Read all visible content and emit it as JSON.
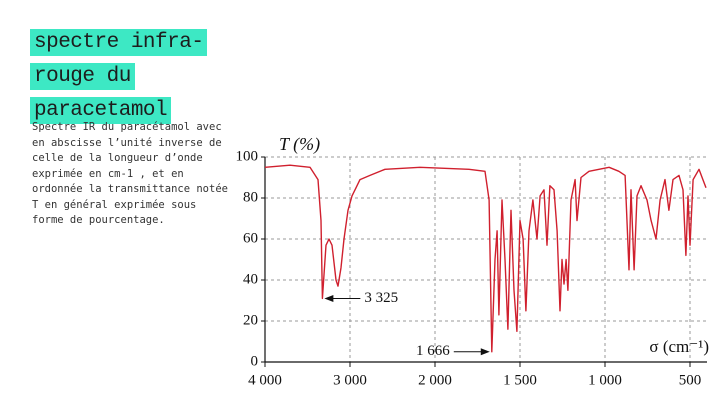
{
  "header": {
    "title": "spectre infra-rouge du paracetamol",
    "description": "Spectre IR du paracétamol avec en abscisse l’unité inverse de celle de la longueur d’onde exprimée en cm-1 , et en ordonnée la transmittance notée T en général exprimée sous forme de pourcentage."
  },
  "chart_data": {
    "type": "line",
    "y_label": "T (%)",
    "x_label": "σ (cm⁻¹)",
    "color": "#d0202e",
    "grid": true,
    "xlim": [
      4000,
      400
    ],
    "ylim": [
      0,
      100
    ],
    "xticks": [
      {
        "value": 4000,
        "label": "4 000"
      },
      {
        "value": 3000,
        "label": "3 000"
      },
      {
        "value": 2000,
        "label": "2 000"
      },
      {
        "value": 1500,
        "label": "1 500"
      },
      {
        "value": 1000,
        "label": "1 000"
      },
      500
    ],
    "yticks": [
      0,
      20,
      40,
      60,
      80,
      100
    ],
    "x": [
      4000,
      3706,
      3471,
      3376,
      3341,
      3325,
      3282,
      3247,
      3212,
      3165,
      3141,
      3106,
      3071,
      3024,
      2976,
      2929,
      2882,
      2765,
      2588,
      2176,
      1800,
      1706,
      1682,
      1666,
      1647,
      1635,
      1624,
      1606,
      1588,
      1571,
      1553,
      1535,
      1518,
      1500,
      1482,
      1465,
      1447,
      1424,
      1400,
      1382,
      1359,
      1341,
      1324,
      1300,
      1282,
      1265,
      1253,
      1241,
      1229,
      1218,
      1200,
      1176,
      1165,
      1141,
      1094,
      1035,
      976,
      918,
      882,
      859,
      847,
      829,
      812,
      788,
      753,
      729,
      700,
      676,
      647,
      624,
      600,
      565,
      541,
      524,
      512,
      500,
      482,
      447,
      424,
      406
    ],
    "values": [
      95,
      96,
      95,
      89,
      69,
      31,
      57,
      60,
      57,
      40,
      37,
      46,
      60,
      74,
      81,
      85,
      89,
      91,
      94,
      95,
      94,
      93,
      79,
      5,
      50,
      64,
      23,
      79,
      50,
      16,
      74,
      35,
      15,
      69,
      60,
      25,
      64,
      79,
      60,
      81,
      84,
      57,
      86,
      84,
      64,
      25,
      50,
      38,
      50,
      35,
      79,
      89,
      69,
      90,
      93,
      94,
      95,
      93,
      91,
      45,
      84,
      45,
      81,
      86,
      79,
      69,
      60,
      79,
      89,
      74,
      89,
      91,
      84,
      52,
      81,
      57,
      89,
      94,
      89,
      85
    ],
    "annotations": [
      {
        "text": "3 325",
        "x": 3325,
        "y": 31,
        "side": "right"
      },
      {
        "text": "1 666",
        "x": 1666,
        "y": 5,
        "side": "left"
      }
    ]
  }
}
